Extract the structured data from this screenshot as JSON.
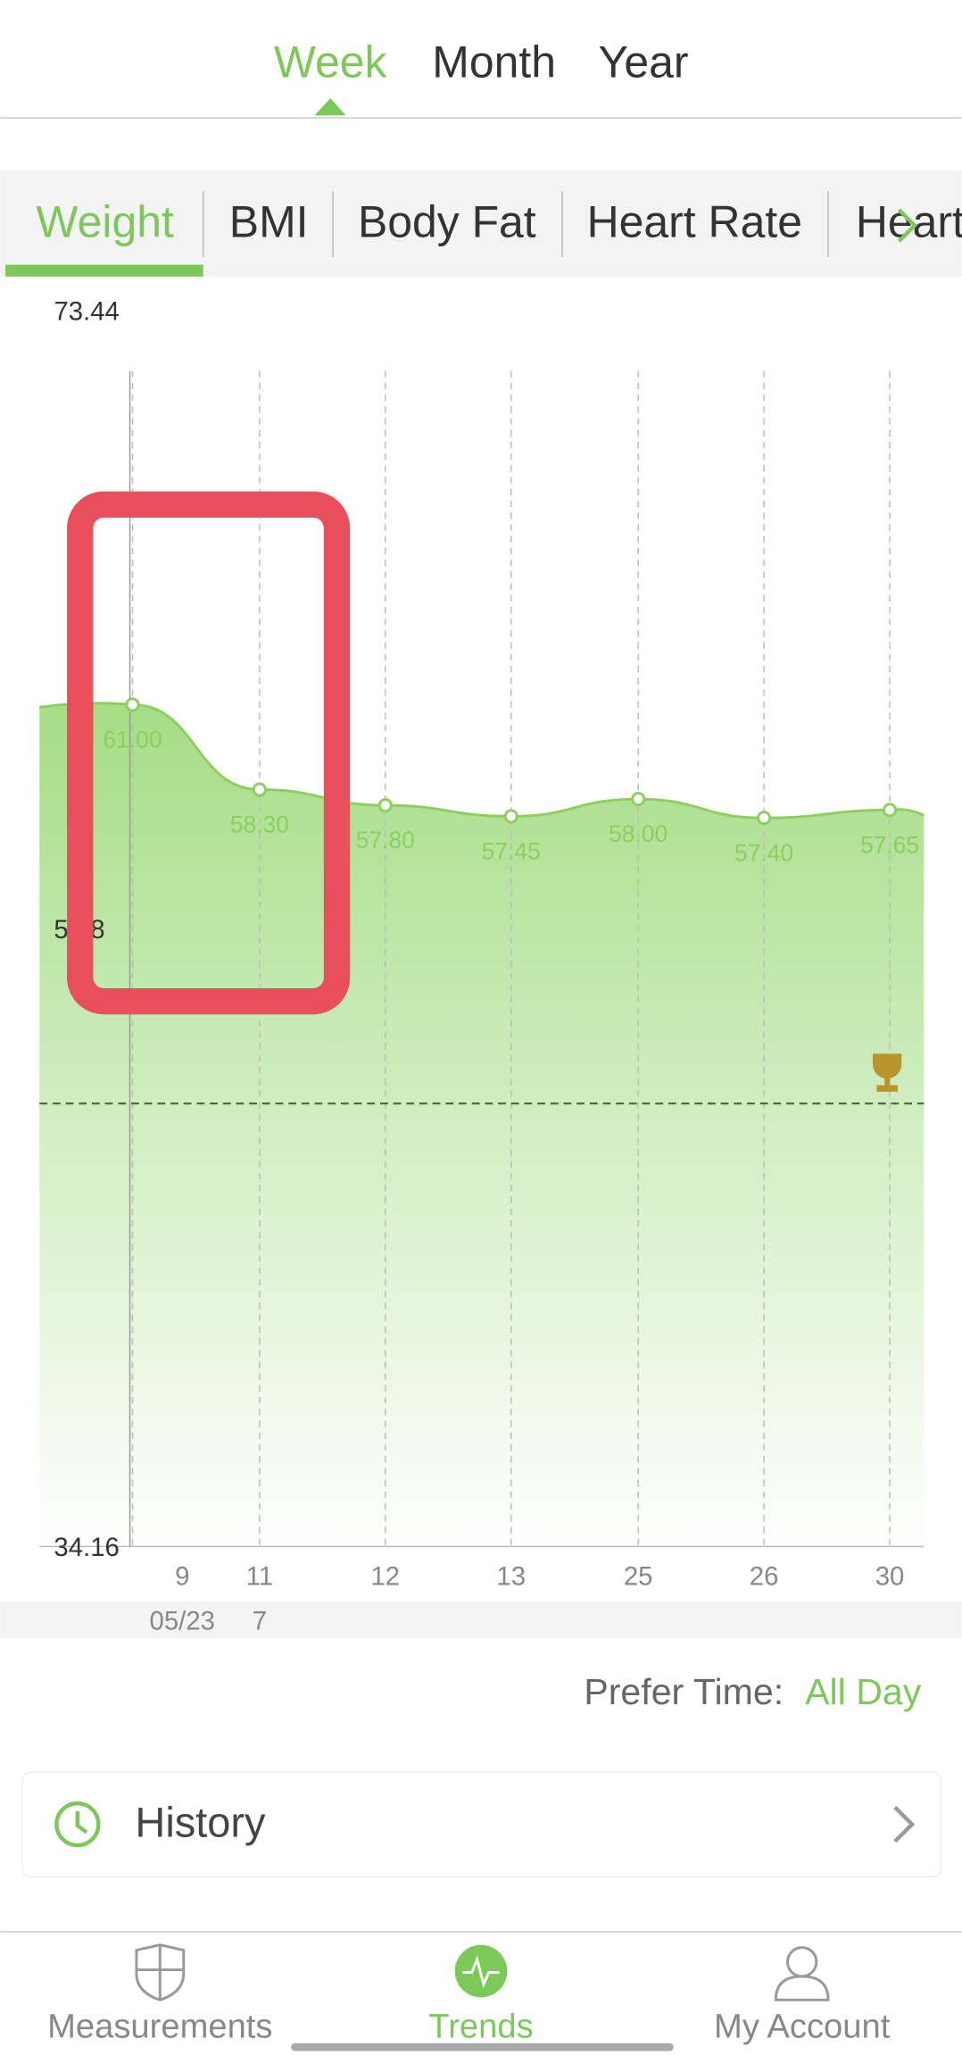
{
  "period_tabs": [
    "Week",
    "Month",
    "Year"
  ],
  "metric_tabs": [
    "Weight",
    "BMI",
    "Body Fat",
    "Heart Rate",
    "Heart"
  ],
  "chart_data": {
    "type": "line",
    "categories": [
      "9",
      "11",
      "12",
      "13",
      "25",
      "26",
      "30"
    ],
    "values": [
      61,
      58.3,
      57.8,
      57.45,
      58,
      57.4,
      57.65
    ],
    "value_labels": [
      "61.00",
      "58.30",
      "57.80",
      "57.45",
      "58.00",
      "57.40",
      "57.65"
    ],
    "color": "#8ccf5f",
    "ylim": [
      34.16,
      73.44
    ],
    "yticks": [
      34.16,
      53.8,
      73.44
    ],
    "date_labels": [
      "05/23",
      "7"
    ]
  },
  "prefer_time": {
    "label": "Prefer Time:",
    "value": "All Day"
  },
  "history": "History",
  "nav": [
    "Measurements",
    "Trends",
    "My Account"
  ]
}
